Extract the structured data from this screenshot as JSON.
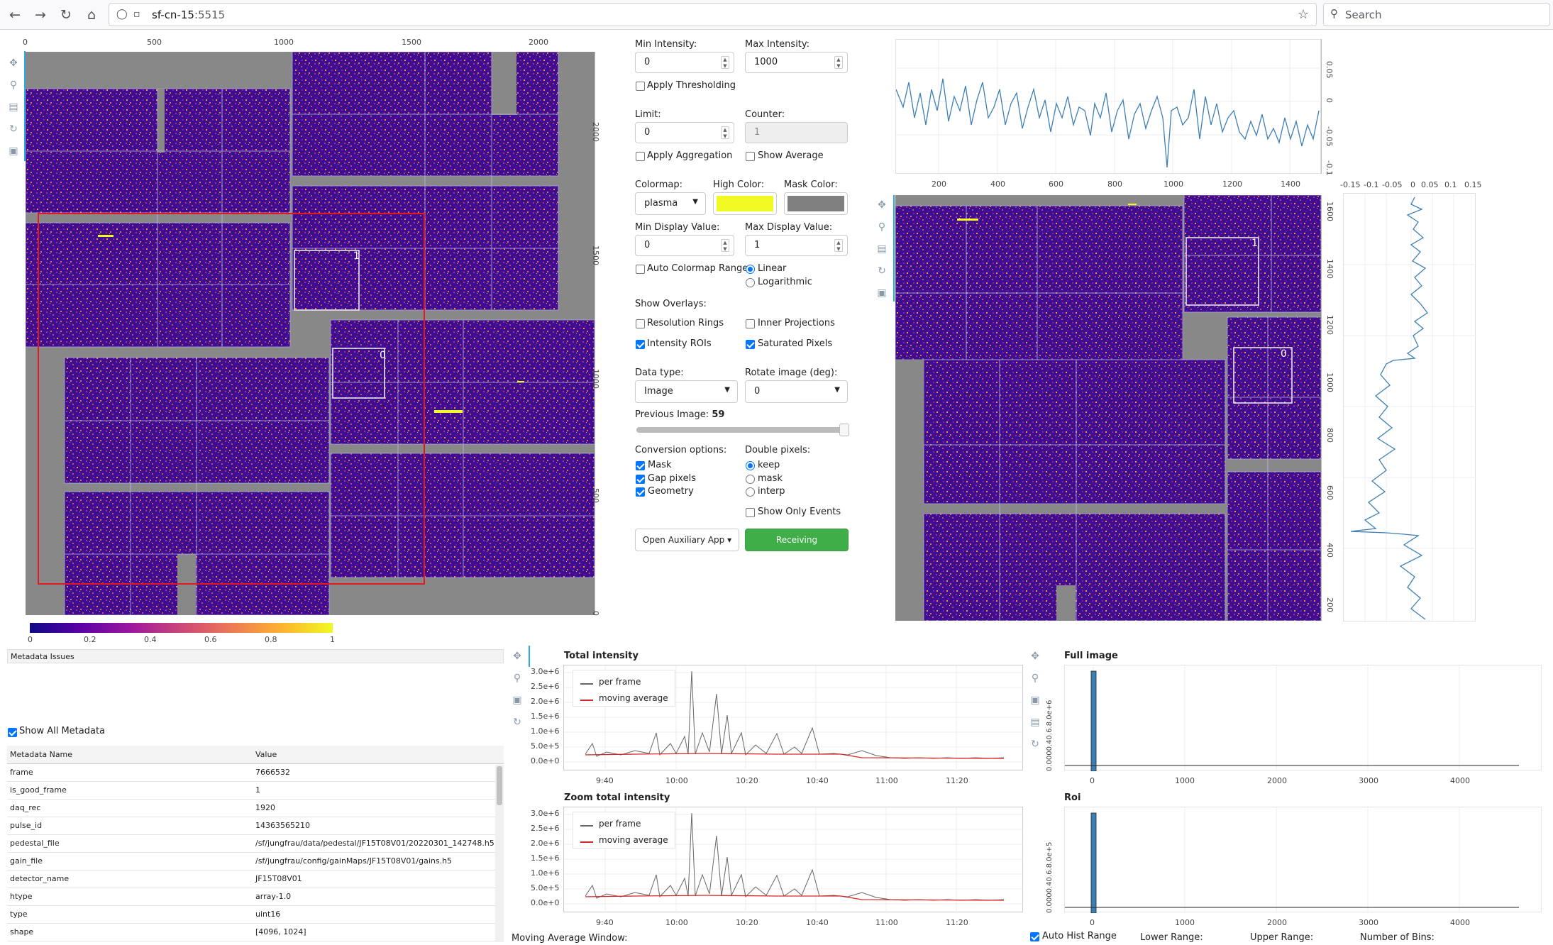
{
  "browser": {
    "url_host": "sf-cn-15",
    "url_port": ":5515",
    "search_placeholder": "Search"
  },
  "main_image": {
    "x_ticks": [
      "0",
      "500",
      "1000",
      "1500",
      "2000"
    ],
    "y_ticks": [
      "2000",
      "1500",
      "1000",
      "500",
      "0"
    ],
    "roi_labels": [
      "1",
      "0"
    ],
    "colorbar_ticks": [
      "0",
      "0.2",
      "0.4",
      "0.6",
      "0.8",
      "1"
    ]
  },
  "controls": {
    "min_intensity_label": "Min Intensity:",
    "min_intensity_value": "0",
    "max_intensity_label": "Max Intensity:",
    "max_intensity_value": "1000",
    "apply_thresholding": "Apply Thresholding",
    "limit_label": "Limit:",
    "limit_value": "0",
    "counter_label": "Counter:",
    "counter_value": "1",
    "apply_aggregation": "Apply Aggregation",
    "show_average": "Show Average",
    "colormap_label": "Colormap:",
    "colormap_value": "plasma",
    "high_color_label": "High Color:",
    "high_color": "#f0f921",
    "mask_color_label": "Mask Color:",
    "mask_color": "#808080",
    "min_display_label": "Min Display Value:",
    "min_display_value": "0",
    "max_display_label": "Max Display Value:",
    "max_display_value": "1",
    "auto_colormap_range": "Auto Colormap Range",
    "scale_linear": "Linear",
    "scale_log": "Logarithmic",
    "show_overlays_label": "Show Overlays:",
    "resolution_rings": "Resolution Rings",
    "inner_projections": "Inner Projections",
    "intensity_rois": "Intensity ROIs",
    "saturated_pixels": "Saturated Pixels",
    "data_type_label": "Data type:",
    "data_type_value": "Image",
    "rotate_label": "Rotate image (deg):",
    "rotate_value": "0",
    "previous_image_label": "Previous Image:",
    "previous_image_value": "59",
    "previous_image_fraction": 1.0,
    "conversion_label": "Conversion options:",
    "conv_mask": "Mask",
    "conv_gap": "Gap pixels",
    "conv_geometry": "Geometry",
    "double_pixels_label": "Double pixels:",
    "dp_keep": "keep",
    "dp_mask": "mask",
    "dp_interp": "interp",
    "show_only_events": "Show Only Events",
    "aux_app_button": "Open Auxiliary App",
    "receiving_button": "Receiving"
  },
  "zoom_image": {
    "top_plot_x_ticks": [
      "200",
      "400",
      "600",
      "800",
      "1000",
      "1200",
      "1400"
    ],
    "top_plot_y_ticks": [
      "0.05",
      "0",
      "-0.05",
      "-0.1"
    ],
    "side_plot_x_ticks": [
      "-0.15",
      "-0.1",
      "-0.05",
      "0",
      "0.05",
      "0.1",
      "0.15"
    ],
    "y_ticks": [
      "1600",
      "1400",
      "1200",
      "1000",
      "800",
      "600",
      "400",
      "200"
    ],
    "roi_labels": [
      "1",
      "0"
    ]
  },
  "metadata": {
    "issues_title": "Metadata Issues",
    "show_all": "Show All Metadata",
    "col_name": "Metadata Name",
    "col_value": "Value",
    "rows": [
      {
        "name": "frame",
        "value": "7666532"
      },
      {
        "name": "is_good_frame",
        "value": "1"
      },
      {
        "name": "daq_rec",
        "value": "1920"
      },
      {
        "name": "pulse_id",
        "value": "14363565210"
      },
      {
        "name": "pedestal_file",
        "value": "/sf/jungfrau/data/pedestal/JF15T08V01/20220301_142748.h5"
      },
      {
        "name": "gain_file",
        "value": "/sf/jungfrau/config/gainMaps/JF15T08V01/gains.h5"
      },
      {
        "name": "detector_name",
        "value": "JF15T08V01"
      },
      {
        "name": "htype",
        "value": "array-1.0"
      },
      {
        "name": "type",
        "value": "uint16"
      },
      {
        "name": "shape",
        "value": "[4096, 1024]"
      }
    ]
  },
  "intensity": {
    "total_title": "Total intensity",
    "zoom_title": "Zoom total intensity",
    "legend_per_frame": "per frame",
    "legend_moving_avg": "moving average",
    "y_ticks": [
      "3.0e+6",
      "2.5e+6",
      "2.0e+6",
      "1.5e+6",
      "1.0e+6",
      "5.0e+5",
      "0.0e+0"
    ],
    "x_ticks": [
      "9:40",
      "10:00",
      "10:20",
      "10:40",
      "11:00",
      "11:20"
    ],
    "moving_avg_label": "Moving Average Window:"
  },
  "histogram": {
    "full_title": "Full image",
    "roi_title": "Roi",
    "x_ticks": [
      "0",
      "1000",
      "2000",
      "3000",
      "4000"
    ],
    "full_y_ticks": "0.0000.40.6.8.0e+6",
    "roi_y_ticks": "0.0000.40.6.8.0e+5",
    "auto_range": "Auto Hist Range",
    "lower_range": "Lower Range:",
    "upper_range": "Upper Range:",
    "num_bins": "Number of Bins:"
  }
}
